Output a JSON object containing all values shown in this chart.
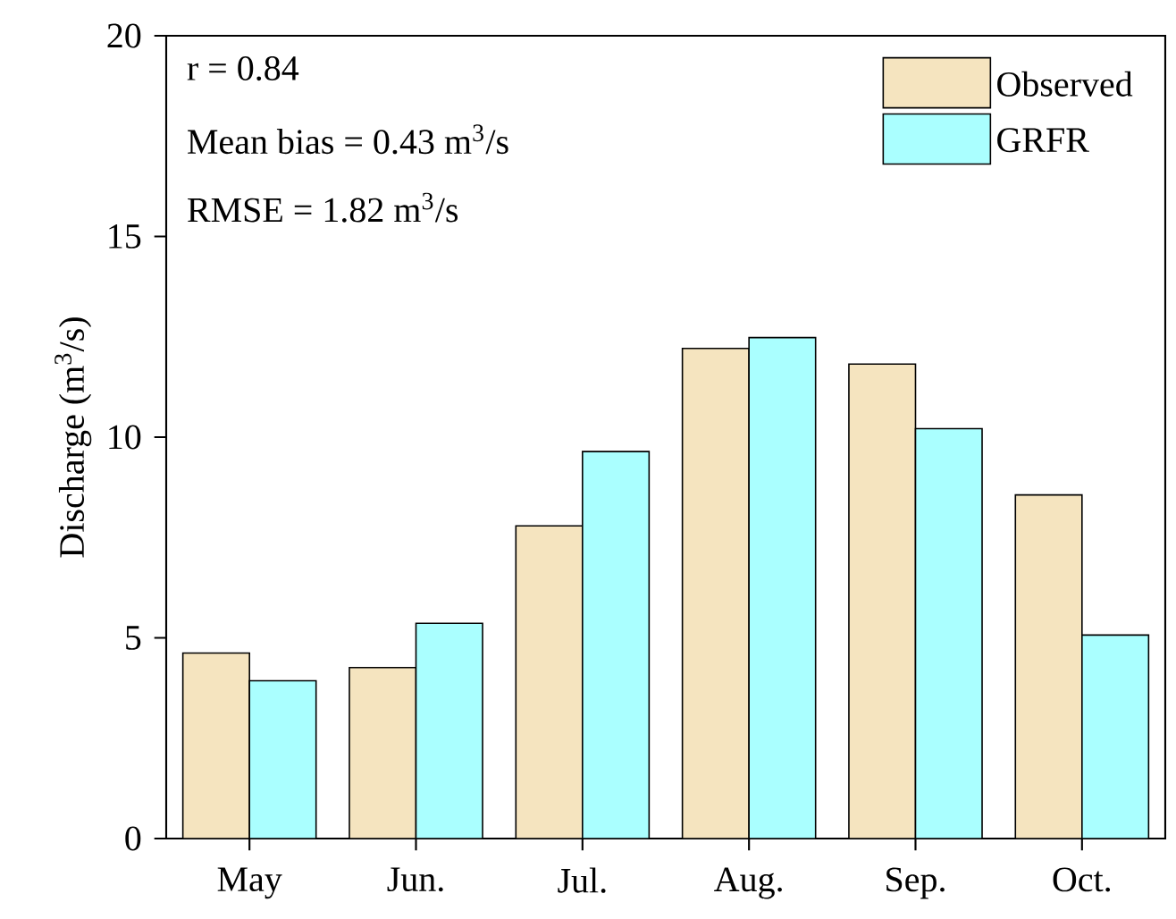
{
  "chart_data": {
    "type": "bar",
    "categories": [
      "May",
      "Jun.",
      "Jul.",
      "Aug.",
      "Sep.",
      "Oct."
    ],
    "series": [
      {
        "name": "Observed",
        "color": "#f5e4bf",
        "values": [
          4.62,
          4.26,
          7.79,
          12.21,
          11.82,
          8.56
        ]
      },
      {
        "name": "GRFR",
        "color": "#aaffff",
        "values": [
          3.93,
          5.36,
          9.64,
          12.48,
          10.21,
          5.07
        ]
      }
    ],
    "ylabel": "Discharge (m$^{3}$/s)",
    "ylim": [
      0,
      20
    ],
    "yticks": [
      0,
      5,
      10,
      15,
      20
    ],
    "annotations": [
      "r = 0.84",
      "Mean bias = 0.43 m$^{3}$/s",
      "RMSE = 1.82 m$^{3}$/s"
    ],
    "legend": "top right",
    "grid": false
  }
}
